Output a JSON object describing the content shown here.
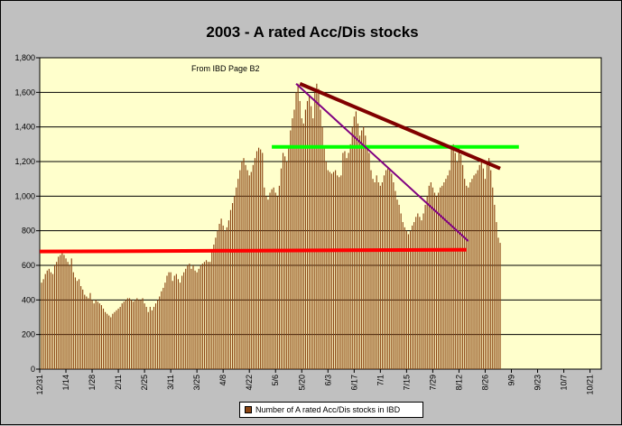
{
  "chart_data": {
    "type": "bar",
    "title": "2003 - A rated Acc/Dis stocks",
    "annotation": "From IBD Page B2",
    "xlabel": "",
    "ylabel": "",
    "ylim": [
      0,
      1800
    ],
    "y_ticks": [
      "0",
      "200",
      "400",
      "600",
      "800",
      "1,000",
      "1,200",
      "1,400",
      "1,600",
      "1,800"
    ],
    "x_ticks": [
      "12/31",
      "1/14",
      "1/28",
      "2/11",
      "2/25",
      "3/11",
      "3/25",
      "4/8",
      "4/22",
      "5/6",
      "5/20",
      "6/3",
      "6/17",
      "7/1",
      "7/15",
      "7/29",
      "8/12",
      "8/26",
      "9/9",
      "9/23",
      "10/7",
      "10/21"
    ],
    "x_start": "12/31",
    "grid": true,
    "legend_position": "bottom",
    "series": [
      {
        "name": "Number of A rated Acc/Dis stocks in IBD",
        "color": "#8b4513",
        "values": [
          500,
          520,
          550,
          570,
          580,
          560,
          550,
          600,
          620,
          650,
          660,
          670,
          660,
          640,
          620,
          600,
          640,
          560,
          530,
          510,
          520,
          480,
          460,
          430,
          420,
          410,
          440,
          400,
          380,
          400,
          390,
          380,
          370,
          350,
          330,
          320,
          310,
          300,
          320,
          330,
          340,
          350,
          360,
          380,
          390,
          400,
          410,
          410,
          400,
          390,
          400,
          410,
          400,
          400,
          410,
          380,
          360,
          330,
          360,
          340,
          360,
          380,
          400,
          420,
          450,
          470,
          500,
          540,
          560,
          560,
          510,
          540,
          550,
          520,
          500,
          540,
          560,
          580,
          600,
          610,
          580,
          600,
          570,
          560,
          580,
          600,
          610,
          620,
          630,
          620,
          620,
          680,
          720,
          760,
          800,
          840,
          870,
          830,
          800,
          820,
          860,
          920,
          960,
          1000,
          1050,
          1100,
          1150,
          1200,
          1220,
          1180,
          1150,
          1120,
          1140,
          1180,
          1220,
          1260,
          1280,
          1270,
          1250,
          1050,
          1000,
          980,
          1020,
          1040,
          1050,
          1020,
          1000,
          1060,
          1160,
          1250,
          1230,
          1200,
          1280,
          1380,
          1450,
          1500,
          1600,
          1650,
          1550,
          1450,
          1420,
          1500,
          1550,
          1580,
          1520,
          1450,
          1600,
          1650,
          1620,
          1500,
          1400,
          1280,
          1200,
          1150,
          1140,
          1130,
          1140,
          1150,
          1120,
          1110,
          1120,
          1250,
          1260,
          1220,
          1250,
          1300,
          1400,
          1460,
          1490,
          1420,
          1350,
          1380,
          1400,
          1350,
          1290,
          1250,
          1150,
          1100,
          1080,
          1120,
          1080,
          1060,
          1080,
          1120,
          1150,
          1160,
          1150,
          1130,
          1080,
          1030,
          980,
          950,
          900,
          850,
          820,
          800,
          780,
          800,
          830,
          850,
          880,
          900,
          880,
          860,
          900,
          950,
          1000,
          1060,
          1080,
          1050,
          1020,
          1000,
          1020,
          1050,
          1060,
          1080,
          1100,
          1120,
          1150,
          1280,
          1300,
          1250,
          1200,
          1280,
          1240,
          1180,
          1100,
          1060,
          1050,
          1080,
          1100,
          1120,
          1130,
          1150,
          1180,
          1200,
          1160,
          1100,
          1200,
          1220,
          1150,
          1050,
          950,
          850,
          760,
          730
        ]
      }
    ],
    "overlay_lines": [
      {
        "color": "#ff0000",
        "from": [
          0,
          680
        ],
        "to": [
          228,
          690
        ]
      },
      {
        "color": "#00ff00",
        "from": [
          124,
          1285
        ],
        "to": [
          256,
          1285
        ]
      },
      {
        "color": "#800000",
        "from": [
          139,
          1650
        ],
        "to": [
          246,
          1160
        ]
      },
      {
        "color": "#800080",
        "from": [
          137,
          1650
        ],
        "to": [
          229,
          740
        ]
      }
    ]
  }
}
